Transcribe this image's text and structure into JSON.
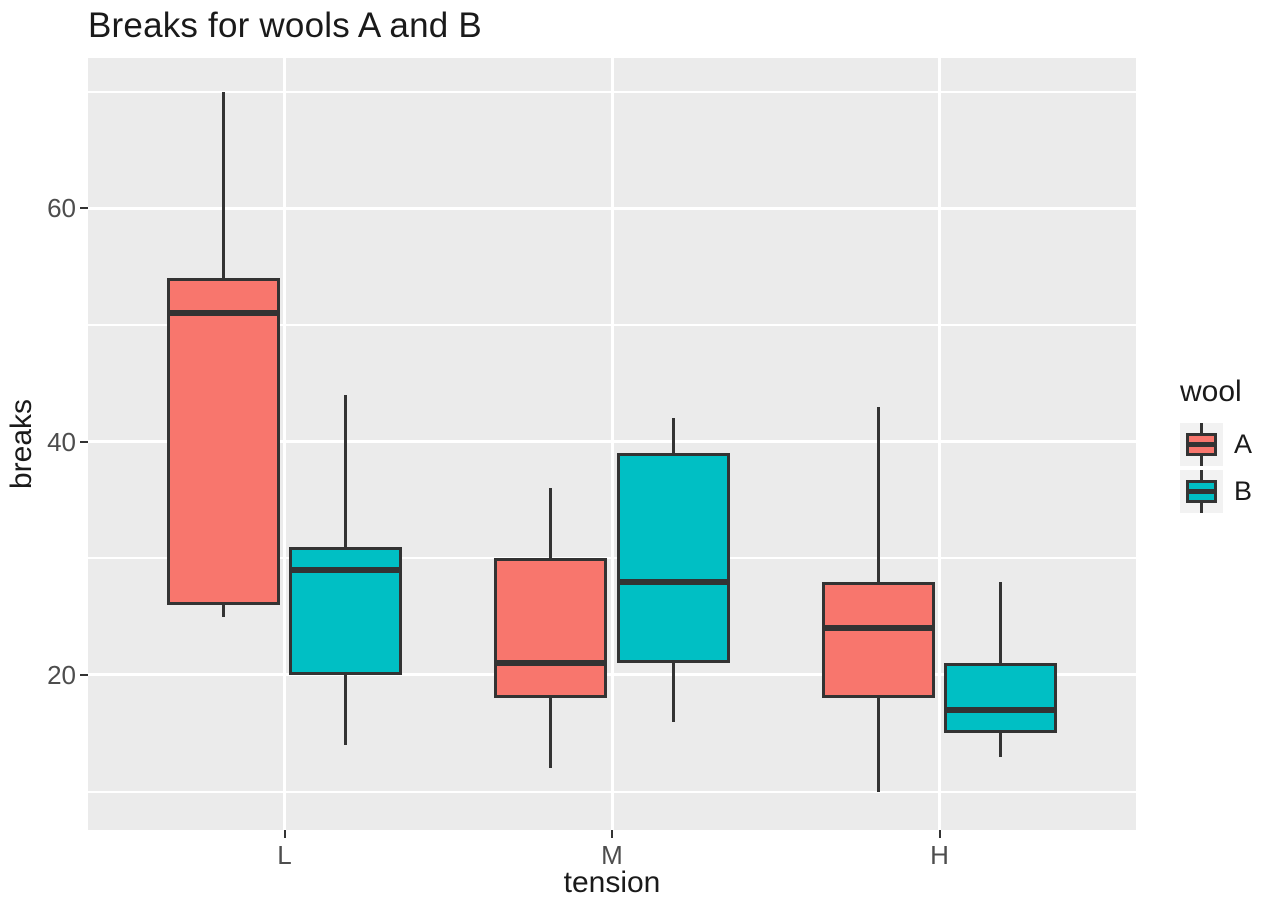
{
  "chart_data": {
    "type": "boxplot",
    "title": "Breaks for wools A and B",
    "xlabel": "tension",
    "ylabel": "breaks",
    "categories": [
      "L",
      "M",
      "H"
    ],
    "yticks": [
      20,
      40,
      60
    ],
    "yticks_minor": [
      10,
      30,
      50,
      70
    ],
    "ylim": [
      6.7,
      72.9
    ],
    "grid": "on",
    "legend": {
      "title": "wool",
      "position": "right",
      "entries": [
        {
          "label": "A",
          "color": "#F8766D"
        },
        {
          "label": "B",
          "color": "#00BFC4"
        }
      ]
    },
    "series": [
      {
        "name": "A",
        "color": "#F8766D",
        "boxes": [
          {
            "category": "L",
            "whisker_low": 25,
            "q1": 26,
            "median": 51,
            "q3": 54,
            "whisker_high": 70
          },
          {
            "category": "M",
            "whisker_low": 12,
            "q1": 18,
            "median": 21,
            "q3": 30,
            "whisker_high": 36
          },
          {
            "category": "H",
            "whisker_low": 10,
            "q1": 18,
            "median": 24,
            "q3": 28,
            "whisker_high": 43
          }
        ]
      },
      {
        "name": "B",
        "color": "#00BFC4",
        "boxes": [
          {
            "category": "L",
            "whisker_low": 14,
            "q1": 20,
            "median": 29,
            "q3": 31,
            "whisker_high": 44
          },
          {
            "category": "M",
            "whisker_low": 16,
            "q1": 21,
            "median": 28,
            "q3": 39,
            "whisker_high": 42
          },
          {
            "category": "H",
            "whisker_low": 13,
            "q1": 15,
            "median": 17,
            "q3": 21,
            "whisker_high": 28
          }
        ]
      }
    ],
    "colors": {
      "panel_background": "#EBEBEB",
      "gridline": "#FFFFFF",
      "box_outline": "#333333",
      "tick_text": "#4D4D4D",
      "title_text": "#1A1A1A",
      "legend_key_background": "#F2F2F2"
    }
  }
}
